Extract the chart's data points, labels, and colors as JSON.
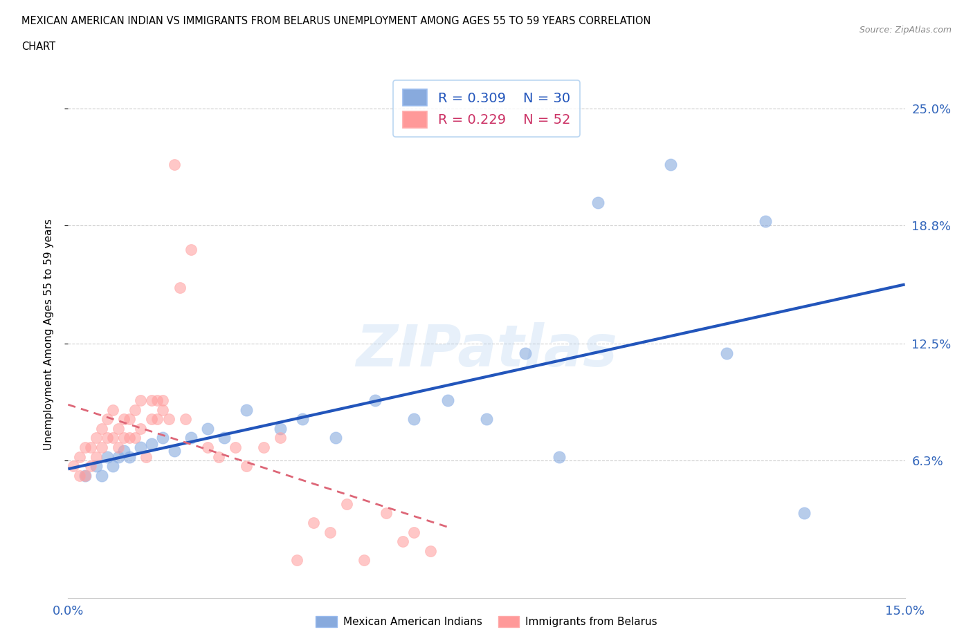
{
  "title_line1": "MEXICAN AMERICAN INDIAN VS IMMIGRANTS FROM BELARUS UNEMPLOYMENT AMONG AGES 55 TO 59 YEARS CORRELATION",
  "title_line2": "CHART",
  "source": "Source: ZipAtlas.com",
  "ylabel": "Unemployment Among Ages 55 to 59 years",
  "xlim": [
    0.0,
    0.15
  ],
  "ylim": [
    -0.01,
    0.27
  ],
  "xticks": [
    0.0,
    0.025,
    0.05,
    0.075,
    0.1,
    0.125,
    0.15
  ],
  "xtick_labels": [
    "0.0%",
    "",
    "",
    "",
    "",
    "",
    "15.0%"
  ],
  "ytick_positions": [
    0.063,
    0.125,
    0.188,
    0.25
  ],
  "ytick_labels": [
    "6.3%",
    "12.5%",
    "18.8%",
    "25.0%"
  ],
  "R_blue": 0.309,
  "N_blue": 30,
  "R_pink": 0.229,
  "N_pink": 52,
  "blue_color": "#88AADD",
  "pink_color": "#FF9999",
  "line_blue": "#2255BB",
  "line_pink": "#DD6677",
  "blue_scatter_x": [
    0.003,
    0.005,
    0.006,
    0.007,
    0.008,
    0.009,
    0.01,
    0.011,
    0.013,
    0.015,
    0.017,
    0.019,
    0.022,
    0.025,
    0.028,
    0.032,
    0.038,
    0.042,
    0.048,
    0.055,
    0.062,
    0.068,
    0.075,
    0.082,
    0.088,
    0.095,
    0.108,
    0.118,
    0.125,
    0.132
  ],
  "blue_scatter_y": [
    0.055,
    0.06,
    0.055,
    0.065,
    0.06,
    0.065,
    0.068,
    0.065,
    0.07,
    0.072,
    0.075,
    0.068,
    0.075,
    0.08,
    0.075,
    0.09,
    0.08,
    0.085,
    0.075,
    0.095,
    0.085,
    0.095,
    0.085,
    0.12,
    0.065,
    0.2,
    0.22,
    0.12,
    0.19,
    0.035
  ],
  "pink_scatter_x": [
    0.001,
    0.002,
    0.002,
    0.003,
    0.003,
    0.004,
    0.004,
    0.005,
    0.005,
    0.006,
    0.006,
    0.007,
    0.007,
    0.008,
    0.008,
    0.009,
    0.009,
    0.01,
    0.01,
    0.011,
    0.011,
    0.012,
    0.012,
    0.013,
    0.013,
    0.014,
    0.015,
    0.015,
    0.016,
    0.016,
    0.017,
    0.017,
    0.018,
    0.019,
    0.02,
    0.021,
    0.022,
    0.025,
    0.027,
    0.03,
    0.032,
    0.035,
    0.038,
    0.041,
    0.044,
    0.047,
    0.05,
    0.053,
    0.057,
    0.06,
    0.062,
    0.065
  ],
  "pink_scatter_y": [
    0.06,
    0.055,
    0.065,
    0.055,
    0.07,
    0.06,
    0.07,
    0.065,
    0.075,
    0.07,
    0.08,
    0.075,
    0.085,
    0.075,
    0.09,
    0.07,
    0.08,
    0.075,
    0.085,
    0.075,
    0.085,
    0.075,
    0.09,
    0.08,
    0.095,
    0.065,
    0.085,
    0.095,
    0.085,
    0.095,
    0.09,
    0.095,
    0.085,
    0.22,
    0.155,
    0.085,
    0.175,
    0.07,
    0.065,
    0.07,
    0.06,
    0.07,
    0.075,
    0.01,
    0.03,
    0.025,
    0.04,
    0.01,
    0.035,
    0.02,
    0.025,
    0.015
  ]
}
